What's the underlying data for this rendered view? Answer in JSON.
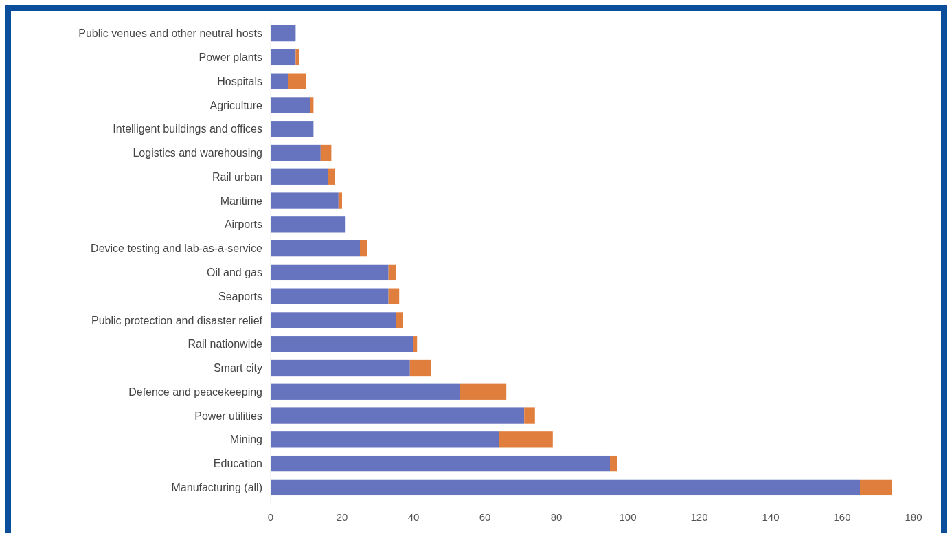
{
  "chart_data": {
    "type": "bar",
    "orientation": "horizontal",
    "stacked": true,
    "categories": [
      "Public venues and other neutral hosts",
      "Power plants",
      "Hospitals",
      "Agriculture",
      "Intelligent buildings and offices",
      "Logistics and warehousing",
      "Rail urban",
      "Maritime",
      "Airports",
      "Device testing and lab-as-a-service",
      "Oil and gas",
      "Seaports",
      "Public protection and disaster relief",
      "Rail nationwide",
      "Smart city",
      "Defence and peacekeeping",
      "Power utilities",
      "Mining",
      "Education",
      "Manufacturing (all)"
    ],
    "series": [
      {
        "color": "#6674c0",
        "values": [
          7,
          7,
          5,
          11,
          12,
          14,
          16,
          19,
          21,
          25,
          33,
          33,
          35,
          40,
          39,
          53,
          71,
          64,
          95,
          165
        ]
      },
      {
        "color": "#e07f3d",
        "values": [
          null,
          1,
          5,
          1,
          null,
          3,
          2,
          1,
          null,
          2,
          2,
          3,
          2,
          1,
          6,
          13,
          3,
          15,
          2,
          9
        ]
      }
    ],
    "xlim": [
      0,
      180
    ],
    "xticks": [
      0,
      20,
      40,
      60,
      80,
      100,
      120,
      140,
      160,
      180
    ],
    "grid": false
  }
}
